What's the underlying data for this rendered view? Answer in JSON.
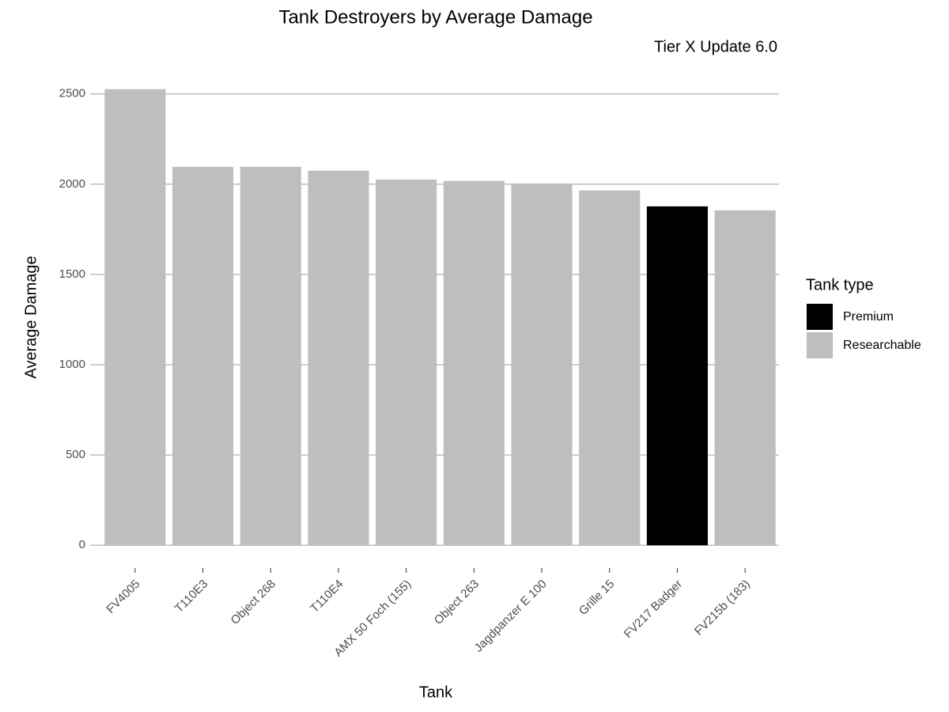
{
  "chart_data": {
    "type": "bar",
    "title": "Tank Destroyers by Average Damage",
    "subtitle": "Tier X Update 6.0",
    "x_label": "Tank",
    "y_label": "Average Damage",
    "legend_title": "Tank type",
    "legend": "right",
    "grid": true,
    "categories": [
      "FV4005",
      "T110E3",
      "Object 268",
      "T110E4",
      "AMX 50 Foch (155)",
      "Object 263",
      "Jagdpanzer E 100",
      "Grille 15",
      "FV217 Badger",
      "FV215b (183)"
    ],
    "series": [
      {
        "name": "Premium",
        "color": "#000000",
        "values": [
          null,
          null,
          null,
          null,
          null,
          null,
          null,
          null,
          1877,
          null
        ]
      },
      {
        "name": "Researchable",
        "color": "#bebebe",
        "values": [
          2526,
          2096,
          2096,
          2075,
          2026,
          2018,
          2004,
          1965,
          null,
          1855
        ]
      }
    ],
    "ylim": [
      -126,
      2652
    ],
    "yticks": [
      0,
      500,
      1000,
      1500,
      2000,
      2500
    ]
  }
}
